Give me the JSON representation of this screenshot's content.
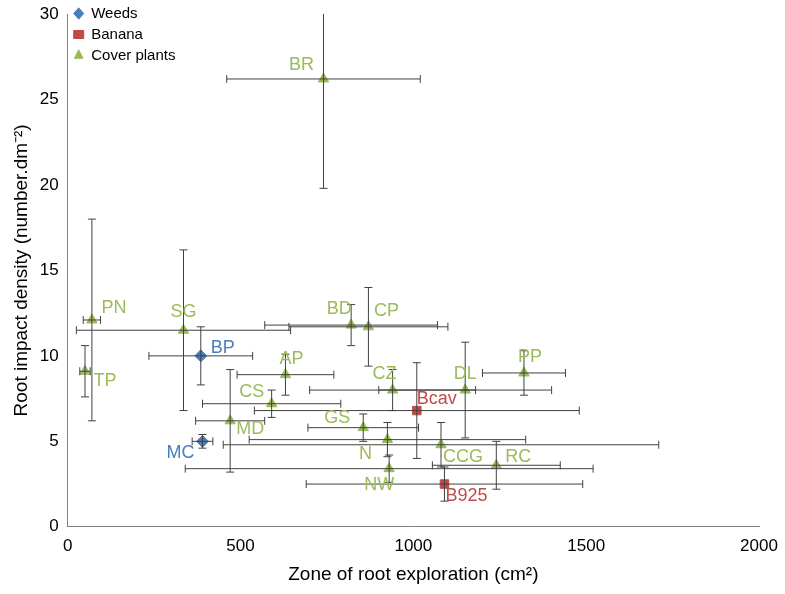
{
  "chart_data": {
    "type": "scatter",
    "x_label": "Zone of root exploration (cm²)",
    "y_label": "Root impact density (number.dm⁻²)",
    "xlim": [
      0,
      2000
    ],
    "xticks": [
      0,
      500,
      1000,
      1500,
      2000
    ],
    "ylim": [
      0,
      30
    ],
    "yticks": [
      0,
      5,
      10,
      15,
      20,
      25,
      30
    ],
    "grid": false,
    "legend": "upper right",
    "series": [
      {
        "name": "Weeds",
        "color": "#4a7ebb",
        "marker": "diamond",
        "point_labels": [
          "BP",
          "MC"
        ],
        "x": [
          385,
          390
        ],
        "values": [
          10.0,
          5.0
        ],
        "x_error": [
          150,
          30
        ],
        "y_error": [
          1.7,
          0.4
        ]
      },
      {
        "name": "Banana",
        "color": "#be4b48",
        "marker": "square",
        "point_labels": [
          "Bcav",
          "B925"
        ],
        "x": [
          1010,
          1090
        ],
        "values": [
          6.8,
          2.5
        ],
        "x_error": [
          470,
          400
        ],
        "y_error": [
          2.8,
          1.0
        ]
      },
      {
        "name": "Cover plants",
        "color": "#9bbb59",
        "marker": "triangle",
        "point_labels": [
          "BR",
          "PN",
          "TP",
          "SG",
          "BD",
          "CP",
          "AP",
          "CS",
          "MD",
          "CZ",
          "GS",
          "N",
          "NW",
          "CCG",
          "DL",
          "PP",
          "RC"
        ],
        "x": [
          740,
          70,
          50,
          335,
          820,
          870,
          630,
          590,
          470,
          940,
          855,
          925,
          930,
          1080,
          1150,
          1320,
          1240
        ],
        "values": [
          26.2,
          12.1,
          9.1,
          11.5,
          11.8,
          11.7,
          8.9,
          7.2,
          6.2,
          8.0,
          5.8,
          5.1,
          3.4,
          4.8,
          8.0,
          9.0,
          3.6
        ],
        "x_error": [
          280,
          25,
          15,
          310,
          250,
          230,
          140,
          200,
          100,
          240,
          160,
          400,
          590,
          630,
          250,
          120,
          185
        ],
        "y_error": [
          6.4,
          5.9,
          1.5,
          4.7,
          1.2,
          2.3,
          1.2,
          0.8,
          3.0,
          1.2,
          0.8,
          1.0,
          0.8,
          1.3,
          2.8,
          1.3,
          1.4
        ]
      }
    ]
  }
}
